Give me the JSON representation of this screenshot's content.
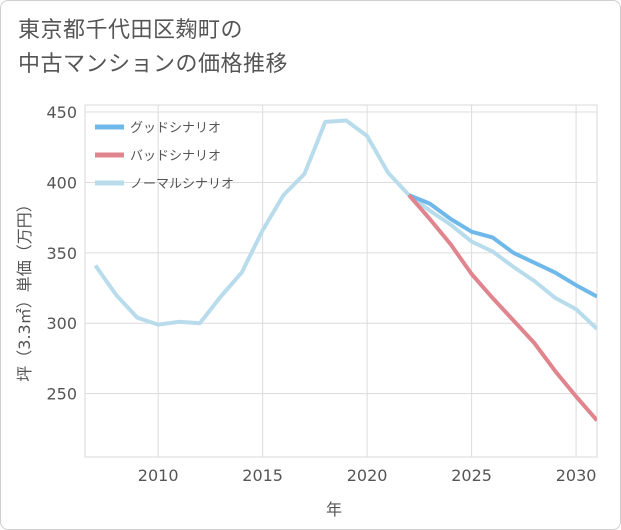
{
  "title": {
    "line1": "東京都千代田区麹町の",
    "line2": "中古マンションの価格推移"
  },
  "chart_data": {
    "type": "line",
    "title": "東京都千代田区麹町の中古マンションの価格推移",
    "xlabel": "年",
    "ylabel": "坪（3.3㎡）単価（万円）",
    "xlim": [
      2006.5,
      2031
    ],
    "ylim": [
      205,
      455
    ],
    "xticks": [
      2010,
      2015,
      2020,
      2025,
      2030
    ],
    "yticks": [
      250,
      300,
      350,
      400,
      450
    ],
    "grid": true,
    "legend_position": "top-left",
    "series": [
      {
        "name": "グッドシナリオ",
        "color": "#6fb8ea",
        "x": [
          2022,
          2023,
          2024,
          2025,
          2026,
          2027,
          2028,
          2029,
          2030,
          2031
        ],
        "values": [
          391,
          385,
          374,
          365,
          361,
          350,
          343,
          336,
          327,
          319
        ]
      },
      {
        "name": "バッドシナリオ",
        "color": "#e0848e",
        "x": [
          2022,
          2023,
          2024,
          2025,
          2026,
          2027,
          2028,
          2029,
          2030,
          2031
        ],
        "values": [
          391,
          374,
          356,
          335,
          318,
          302,
          286,
          266,
          248,
          231
        ]
      },
      {
        "name": "ノーマルシナリオ",
        "color": "#b9dcec",
        "x": [
          2007,
          2008,
          2009,
          2010,
          2011,
          2012,
          2013,
          2014,
          2015,
          2016,
          2017,
          2018,
          2019,
          2020,
          2021,
          2022,
          2023,
          2024,
          2025,
          2026,
          2027,
          2028,
          2029,
          2030,
          2031
        ],
        "values": [
          341,
          320,
          304,
          299,
          301,
          300,
          319,
          336,
          366,
          391,
          406,
          443,
          444,
          433,
          407,
          391,
          380,
          370,
          358,
          351,
          340,
          330,
          318,
          310,
          296
        ]
      }
    ]
  }
}
